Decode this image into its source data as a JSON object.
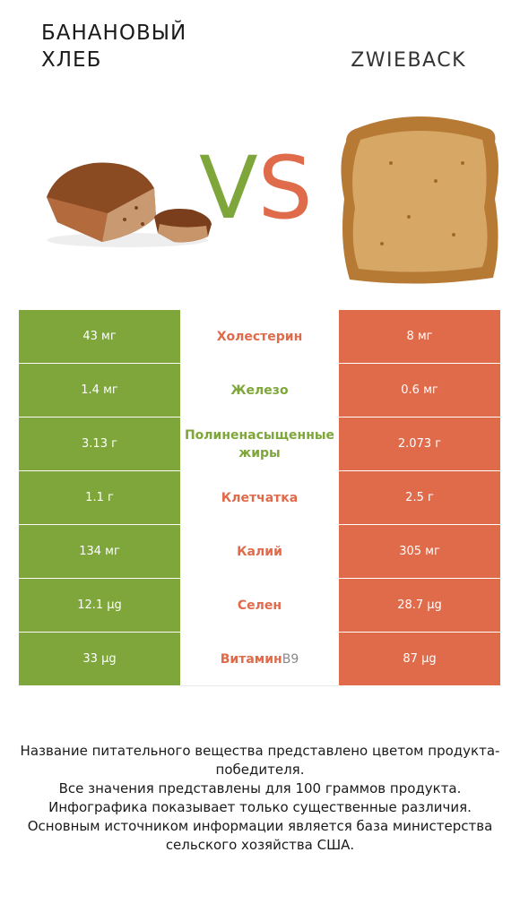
{
  "header": {
    "left_title": "БАНАНОВЫЙ ХЛЕБ",
    "right_title": "ZWIEBACK",
    "vs_v": "V",
    "vs_s": "S"
  },
  "colors": {
    "left_winner": "#7ea63a",
    "right_winner": "#e06b4b"
  },
  "rows": [
    {
      "left": "43 мг",
      "name": "Холестерин",
      "name_suffix": "",
      "winner": "right",
      "right": "8 мг"
    },
    {
      "left": "1.4 мг",
      "name": "Железо",
      "name_suffix": "",
      "winner": "left",
      "right": "0.6 мг"
    },
    {
      "left": "3.13 г",
      "name": "Полиненасыщенные жиры",
      "name_suffix": "",
      "winner": "left",
      "right": "2.073 г"
    },
    {
      "left": "1.1 г",
      "name": "Клетчатка",
      "name_suffix": "",
      "winner": "right",
      "right": "2.5 г"
    },
    {
      "left": "134 мг",
      "name": "Калий",
      "name_suffix": "",
      "winner": "right",
      "right": "305 мг"
    },
    {
      "left": "12.1 µg",
      "name": "Селен",
      "name_suffix": "",
      "winner": "right",
      "right": "28.7 µg"
    },
    {
      "left": "33 µg",
      "name": "Витамин ",
      "name_suffix": "B9",
      "winner": "right",
      "right": "87 µg"
    }
  ],
  "footer": [
    "Название питательного вещества представлено цветом продукта-победителя.",
    "Все значения представлены для 100 граммов продукта.",
    "Инфографика показывает только существенные различия.",
    "Основным источником информации является база министерства сельского хозяйства США."
  ]
}
